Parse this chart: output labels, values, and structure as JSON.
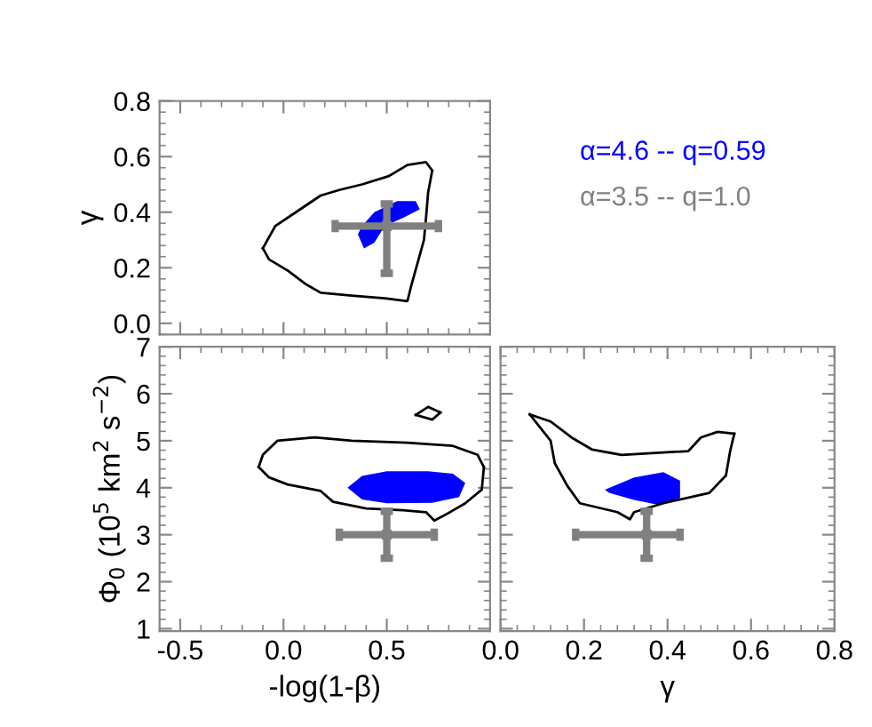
{
  "chart_data": [
    {
      "type": "line",
      "ylabel": "γ",
      "xlim": [
        -0.6,
        1.0
      ],
      "ylim": [
        -0.04,
        0.8
      ],
      "xticks": [
        -0.5,
        0,
        0.5
      ],
      "yticks": [
        {
          "value": 0,
          "label": "0.0"
        },
        0.2,
        0.4,
        0.6,
        0.8
      ],
      "tick_labels": "y",
      "legend": "right",
      "series": [
        {
          "color": "#000000",
          "x": [
            -0.1,
            -0.04,
            0.06,
            0.18,
            0.27,
            0.38,
            0.51,
            0.6,
            0.69,
            0.72
          ],
          "values": [
            0.27,
            0.35,
            0.4,
            0.46,
            0.48,
            0.5,
            0.53,
            0.57,
            0.58,
            0.55
          ]
        },
        {
          "color": "#000000",
          "x": [
            -0.1,
            -0.07,
            0.02,
            0.11,
            0.18,
            0.33,
            0.49,
            0.6,
            0.62,
            0.65,
            0.68,
            0.69,
            0.7,
            0.72
          ],
          "values": [
            0.27,
            0.23,
            0.19,
            0.14,
            0.11,
            0.1,
            0.09,
            0.08,
            0.14,
            0.22,
            0.3,
            0.38,
            0.47,
            0.55
          ]
        },
        {
          "type": "area",
          "name": "α=4.6 -- q=0.59",
          "color": "#0000ff",
          "x": [
            0.38,
            0.44,
            0.55,
            0.64,
            0.66,
            0.58,
            0.49,
            0.44,
            0.39,
            0.36
          ],
          "values": [
            0.35,
            0.4,
            0.44,
            0.44,
            0.41,
            0.38,
            0.35,
            0.29,
            0.27,
            0.32
          ]
        },
        {
          "type": "scatter",
          "name": "α=3.5 -- q=1.0",
          "color": "#808080",
          "marker": "square",
          "x": [
            0.5
          ],
          "values": [
            0.35
          ],
          "xerrors": [
            0.25
          ],
          "errors": [
            [
              0.18,
              0.43
            ]
          ]
        }
      ]
    },
    {
      "type": "line",
      "xlabel": "-log(1-β)",
      "ylabel": "Φ$_{0}$ (10$^{5}$ km$^{2}$ s$^{−2}$)",
      "xlim": [
        -0.6,
        1.0
      ],
      "ylim": [
        0.95,
        7
      ],
      "xticks": [
        -0.5,
        {
          "value": 0,
          "label": "0.0"
        },
        0.5
      ],
      "yticks": [
        1,
        2,
        3,
        4,
        5,
        6,
        7
      ],
      "series": [
        {
          "color": "#000000",
          "x": [
            -0.12,
            -0.1,
            -0.03,
            0.15,
            0.33,
            0.6,
            0.82,
            0.94,
            0.97
          ],
          "values": [
            4.44,
            4.7,
            5.0,
            5.07,
            5.0,
            4.96,
            4.89,
            4.7,
            4.44
          ]
        },
        {
          "color": "#000000",
          "x": [
            -0.12,
            -0.07,
            0.02,
            0.18,
            0.24,
            0.4,
            0.58,
            0.69,
            0.73,
            0.79,
            0.88,
            0.96,
            0.97
          ],
          "values": [
            4.44,
            4.22,
            4.07,
            3.93,
            3.7,
            3.56,
            3.52,
            3.48,
            3.3,
            3.44,
            3.67,
            3.96,
            4.44
          ]
        },
        {
          "color": "#000000",
          "x": [
            0.64,
            0.7,
            0.76
          ],
          "values": [
            5.55,
            5.72,
            5.6
          ]
        },
        {
          "color": "#000000",
          "x": [
            0.64,
            0.72,
            0.76
          ],
          "values": [
            5.55,
            5.45,
            5.6
          ]
        },
        {
          "type": "area",
          "color": "#0000ff",
          "x": [
            0.31,
            0.38,
            0.5,
            0.7,
            0.82,
            0.88,
            0.85,
            0.72,
            0.5,
            0.38
          ],
          "values": [
            4.0,
            4.25,
            4.35,
            4.35,
            4.3,
            4.1,
            3.8,
            3.68,
            3.67,
            3.75
          ]
        },
        {
          "type": "scatter",
          "color": "#808080",
          "marker": "square",
          "x": [
            0.5
          ],
          "values": [
            3.0
          ],
          "xerrors": [
            0.23
          ],
          "errors": [
            0.5
          ]
        }
      ]
    },
    {
      "type": "line",
      "xlabel": "γ",
      "xlim": [
        0.0,
        0.8
      ],
      "ylim": [
        0.95,
        7
      ],
      "xticks": [
        {
          "value": 0,
          "label": "0.0"
        },
        0.2,
        0.4,
        0.6,
        0.8
      ],
      "yticks": [
        1,
        2,
        3,
        4,
        5,
        6,
        7
      ],
      "tick_labels": "x",
      "series": [
        {
          "color": "#000000",
          "x": [
            0.07,
            0.12,
            0.13,
            0.16,
            0.19,
            0.28,
            0.31,
            0.32,
            0.39,
            0.5,
            0.54,
            0.55,
            0.56
          ],
          "values": [
            5.56,
            5.0,
            4.52,
            4.04,
            3.67,
            3.48,
            3.33,
            3.48,
            3.67,
            3.89,
            4.26,
            4.78,
            5.15
          ]
        },
        {
          "color": "#000000",
          "x": [
            0.07,
            0.12,
            0.17,
            0.22,
            0.29,
            0.45,
            0.48,
            0.52,
            0.56
          ],
          "values": [
            5.56,
            5.41,
            5.07,
            4.81,
            4.7,
            4.78,
            5.07,
            5.19,
            5.15
          ]
        },
        {
          "type": "area",
          "color": "#0000ff",
          "x": [
            0.25,
            0.32,
            0.39,
            0.43,
            0.43,
            0.38,
            0.32,
            0.26
          ],
          "values": [
            3.96,
            4.22,
            4.33,
            4.15,
            3.78,
            3.63,
            3.74,
            3.89
          ]
        },
        {
          "type": "scatter",
          "color": "#808080",
          "marker": "square",
          "x": [
            0.35
          ],
          "values": [
            3.0
          ],
          "xerrors": [
            [
              0.18,
              0.43
            ]
          ],
          "errors": [
            0.5
          ]
        }
      ]
    }
  ]
}
